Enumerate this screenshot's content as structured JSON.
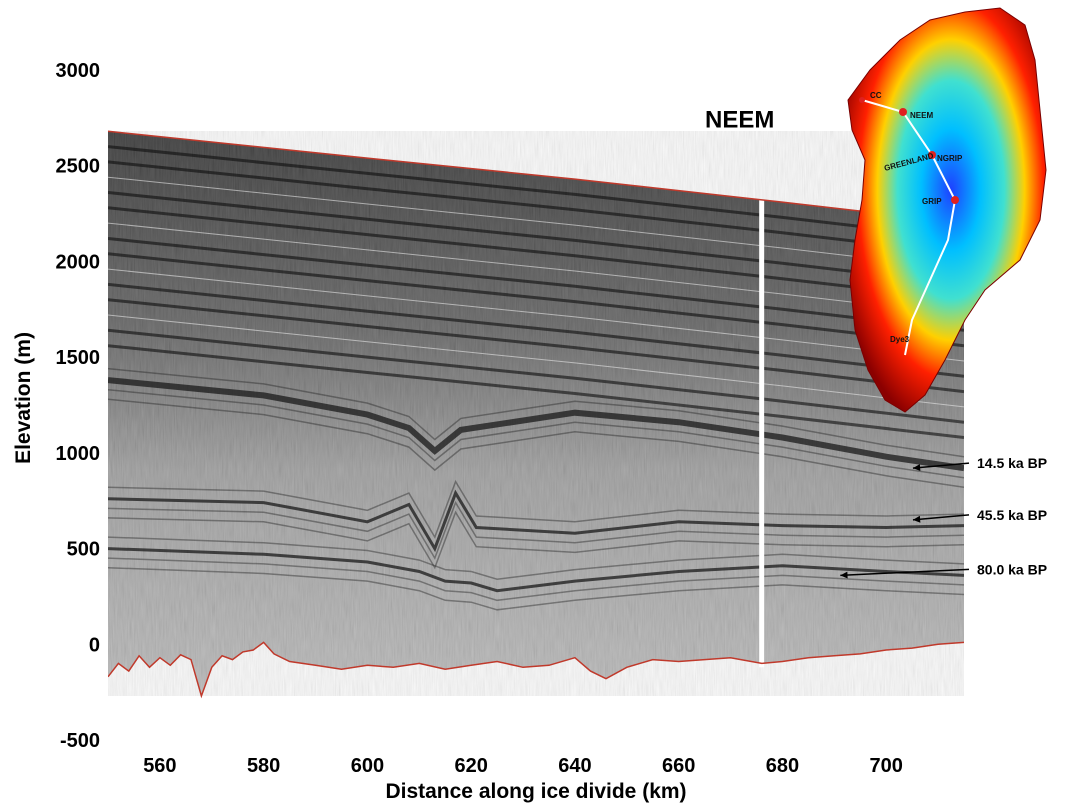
{
  "chart_data": {
    "type": "line",
    "xlabel": "Distance along ice divide (km)",
    "ylabel": "Elevation (m)",
    "xlim": [
      550,
      715
    ],
    "ylim": [
      -500,
      3000
    ],
    "x_ticks": [
      560,
      580,
      600,
      620,
      640,
      660,
      680,
      700
    ],
    "y_ticks": [
      3000,
      2500,
      2000,
      1500,
      1000,
      500,
      0,
      -500
    ],
    "site_label": "NEEM",
    "site_x": 676,
    "surface": {
      "x": [
        550,
        600,
        640,
        680,
        715
      ],
      "y": [
        2680,
        2540,
        2430,
        2310,
        2200
      ]
    },
    "bed": {
      "x": [
        550,
        552,
        554,
        556,
        558,
        560,
        562,
        564,
        566,
        568,
        570,
        572,
        574,
        576,
        578,
        580,
        582,
        585,
        590,
        595,
        600,
        605,
        610,
        615,
        620,
        625,
        630,
        635,
        640,
        643,
        646,
        650,
        655,
        660,
        665,
        670,
        676,
        680,
        685,
        690,
        695,
        700,
        705,
        710,
        715
      ],
      "y": [
        -170,
        -100,
        -140,
        -60,
        -120,
        -70,
        -110,
        -55,
        -80,
        -270,
        -120,
        -60,
        -80,
        -40,
        -30,
        10,
        -50,
        -90,
        -110,
        -130,
        -110,
        -120,
        -100,
        -130,
        -110,
        -90,
        -120,
        -110,
        -70,
        -140,
        -180,
        -120,
        -80,
        -90,
        -80,
        -70,
        -100,
        -90,
        -70,
        -60,
        -50,
        -30,
        -20,
        0,
        10
      ]
    },
    "layers": [
      {
        "label": "14.5 ka BP",
        "x": [
          550,
          580,
          600,
          608,
          613,
          618,
          640,
          660,
          680,
          700,
          715
        ],
        "y": [
          1380,
          1300,
          1200,
          1130,
          1010,
          1120,
          1210,
          1160,
          1080,
          980,
          920
        ]
      },
      {
        "label": "45.5 ka BP",
        "x": [
          550,
          580,
          600,
          608,
          613,
          617,
          621,
          640,
          660,
          680,
          700,
          715
        ],
        "y": [
          760,
          740,
          640,
          730,
          500,
          790,
          610,
          580,
          640,
          620,
          610,
          620
        ]
      },
      {
        "label": "80.0 ka BP",
        "x": [
          550,
          580,
          600,
          610,
          615,
          620,
          625,
          640,
          660,
          680,
          700,
          715
        ],
        "y": [
          500,
          470,
          430,
          380,
          330,
          320,
          280,
          330,
          380,
          410,
          380,
          360
        ]
      }
    ],
    "annotations": [
      {
        "text": "14.5 ka BP",
        "x": 704,
        "y": 920
      },
      {
        "text": "45.5 ka BP",
        "x": 704,
        "y": 650
      },
      {
        "text": "80.0 ka BP",
        "x": 690,
        "y": 360
      }
    ],
    "inset_map": {
      "labels": [
        "CC",
        "NEEM",
        "NGRIP",
        "GREENLAND",
        "GRIP",
        "Dye3"
      ],
      "colors": [
        "#8b0000",
        "#ff2000",
        "#ffd000",
        "#40e0d0",
        "#00bfff",
        "#1e40ff"
      ]
    }
  }
}
